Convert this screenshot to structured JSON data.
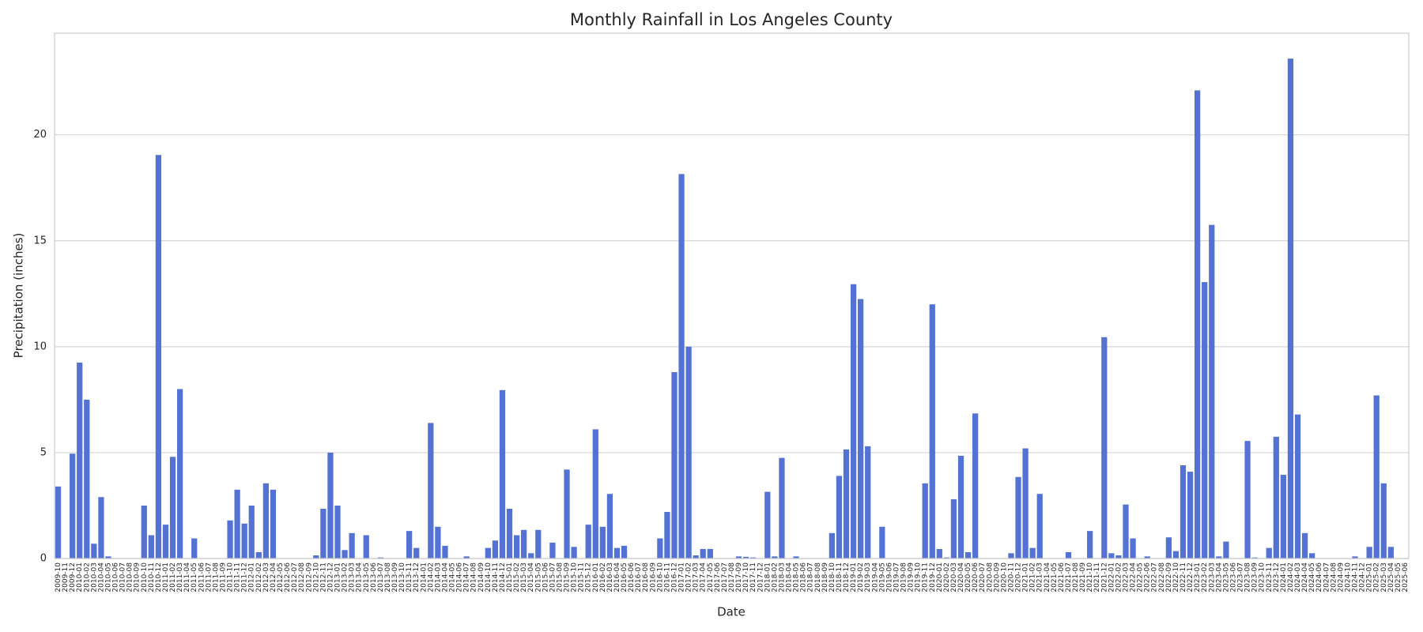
{
  "chart_data": {
    "type": "bar",
    "title": "Monthly Rainfall in Los Angeles County",
    "xlabel": "Date",
    "ylabel": "Precipitation (inches)",
    "color": "#5472d3",
    "grid": true,
    "ylim": [
      0,
      24.8
    ],
    "yticks": [
      0,
      5,
      10,
      15,
      20
    ],
    "categories": [
      "2009-10",
      "2009-11",
      "2009-12",
      "2010-01",
      "2010-02",
      "2010-03",
      "2010-04",
      "2010-05",
      "2010-06",
      "2010-07",
      "2010-08",
      "2010-09",
      "2010-10",
      "2010-11",
      "2010-12",
      "2011-01",
      "2011-02",
      "2011-03",
      "2011-04",
      "2011-05",
      "2011-06",
      "2011-07",
      "2011-08",
      "2011-09",
      "2011-10",
      "2011-11",
      "2011-12",
      "2012-01",
      "2012-02",
      "2012-03",
      "2012-04",
      "2012-05",
      "2012-06",
      "2012-07",
      "2012-08",
      "2012-09",
      "2012-10",
      "2012-11",
      "2012-12",
      "2013-01",
      "2013-02",
      "2013-03",
      "2013-04",
      "2013-05",
      "2013-06",
      "2013-07",
      "2013-08",
      "2013-09",
      "2013-10",
      "2013-11",
      "2013-12",
      "2014-01",
      "2014-02",
      "2014-03",
      "2014-04",
      "2014-05",
      "2014-06",
      "2014-07",
      "2014-08",
      "2014-09",
      "2014-10",
      "2014-11",
      "2014-12",
      "2015-01",
      "2015-02",
      "2015-03",
      "2015-04",
      "2015-05",
      "2015-06",
      "2015-07",
      "2015-08",
      "2015-09",
      "2015-10",
      "2015-11",
      "2015-12",
      "2016-01",
      "2016-02",
      "2016-03",
      "2016-04",
      "2016-05",
      "2016-06",
      "2016-07",
      "2016-08",
      "2016-09",
      "2016-10",
      "2016-11",
      "2016-12",
      "2017-01",
      "2017-02",
      "2017-03",
      "2017-04",
      "2017-05",
      "2017-06",
      "2017-07",
      "2017-08",
      "2017-09",
      "2017-10",
      "2017-11",
      "2017-12",
      "2018-01",
      "2018-02",
      "2018-03",
      "2018-04",
      "2018-05",
      "2018-06",
      "2018-07",
      "2018-08",
      "2018-09",
      "2018-10",
      "2018-11",
      "2018-12",
      "2019-01",
      "2019-02",
      "2019-03",
      "2019-04",
      "2019-05",
      "2019-06",
      "2019-07",
      "2019-08",
      "2019-09",
      "2019-10",
      "2019-11",
      "2019-12",
      "2020-01",
      "2020-02",
      "2020-03",
      "2020-04",
      "2020-05",
      "2020-06",
      "2020-07",
      "2020-08",
      "2020-09",
      "2020-10",
      "2020-11",
      "2020-12",
      "2021-01",
      "2021-02",
      "2021-03",
      "2021-04",
      "2021-05",
      "2021-06",
      "2021-07",
      "2021-08",
      "2021-09",
      "2021-10",
      "2021-11",
      "2021-12",
      "2022-01",
      "2022-02",
      "2022-03",
      "2022-04",
      "2022-05",
      "2022-06",
      "2022-07",
      "2022-08",
      "2022-09",
      "2022-10",
      "2022-11",
      "2022-12",
      "2023-01",
      "2023-02",
      "2023-03",
      "2023-04",
      "2023-05",
      "2023-06",
      "2023-07",
      "2023-08",
      "2023-09",
      "2023-10",
      "2023-11",
      "2023-12",
      "2024-01",
      "2024-02",
      "2024-03",
      "2024-04",
      "2024-05",
      "2024-06",
      "2024-07",
      "2024-08",
      "2024-09",
      "2024-10",
      "2024-11",
      "2024-12",
      "2025-01",
      "2025-02",
      "2025-03",
      "2025-04",
      "2025-05",
      "2025-06"
    ],
    "values": [
      3.4,
      0,
      4.95,
      9.25,
      7.5,
      0.7,
      2.9,
      0.1,
      0,
      0,
      0,
      0,
      2.5,
      1.1,
      19.05,
      1.6,
      4.8,
      8.0,
      0,
      0.95,
      0,
      0,
      0,
      0,
      1.8,
      3.25,
      1.65,
      2.5,
      0.3,
      3.55,
      3.25,
      0,
      0,
      0,
      0,
      0,
      0.15,
      2.35,
      5.0,
      2.5,
      0.4,
      1.2,
      0,
      1.1,
      0,
      0.05,
      0,
      0,
      0,
      1.3,
      0.5,
      0,
      6.4,
      1.5,
      0.6,
      0,
      0,
      0.1,
      0,
      0,
      0.5,
      0.85,
      7.95,
      2.35,
      1.1,
      1.35,
      0.25,
      1.35,
      0,
      0.75,
      0,
      4.2,
      0.55,
      0,
      1.6,
      6.1,
      1.5,
      3.05,
      0.5,
      0.6,
      0,
      0,
      0,
      0,
      0.95,
      2.2,
      8.8,
      18.15,
      10.0,
      0.15,
      0.45,
      0.45,
      0,
      0,
      0,
      0.1,
      0.08,
      0.05,
      0,
      3.15,
      0.1,
      4.75,
      0,
      0.1,
      0,
      0,
      0,
      0,
      1.2,
      3.9,
      5.15,
      12.95,
      12.25,
      5.3,
      0,
      1.5,
      0,
      0,
      0,
      0,
      0,
      3.55,
      12.0,
      0.45,
      0.05,
      2.8,
      4.85,
      0.3,
      6.85,
      0,
      0,
      0,
      0,
      0.25,
      3.85,
      5.2,
      0.5,
      3.05,
      0,
      0,
      0,
      0.3,
      0,
      0,
      1.3,
      0,
      10.45,
      0.25,
      0.15,
      2.55,
      0.95,
      0,
      0.1,
      0,
      0,
      1.0,
      0.35,
      4.4,
      4.1,
      22.1,
      13.05,
      15.75,
      0.1,
      0.8,
      0,
      0,
      5.55,
      0.05,
      0,
      0.5,
      5.75,
      3.95,
      23.6,
      6.8,
      1.2,
      0.25,
      0,
      0,
      0,
      0,
      0,
      0.1,
      0,
      0.55,
      7.7,
      3.55,
      0.55,
      0,
      0
    ]
  }
}
